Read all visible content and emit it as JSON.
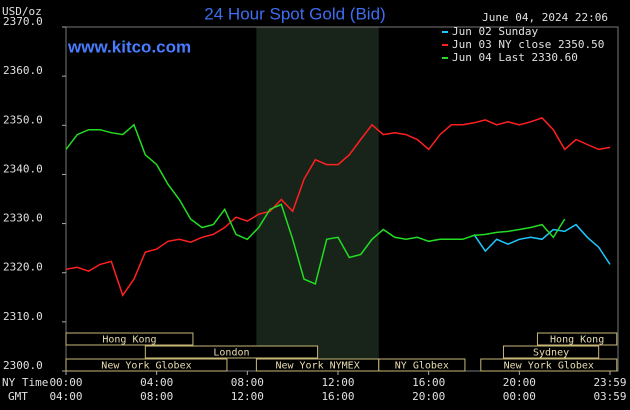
{
  "chart_data": {
    "type": "line",
    "title": "24 Hour Spot Gold (Bid)",
    "y_unit_label": "USD/oz",
    "watermark": "www.kitco.com",
    "timestamp": "June 04, 2024 22:06",
    "x_axis_label": "NY Time",
    "x2_axis_label": "GMT",
    "xlim": [
      0,
      24
    ],
    "xticks": [
      {
        "value": 0,
        "label": "00:00"
      },
      {
        "value": 4,
        "label": "04:00"
      },
      {
        "value": 8,
        "label": "08:00"
      },
      {
        "value": 12,
        "label": "12:00"
      },
      {
        "value": 16,
        "label": "16:00"
      },
      {
        "value": 20,
        "label": "20:00"
      },
      {
        "value": 24,
        "label": "23:59"
      }
    ],
    "gmt_tick_labels": [
      "04:00",
      "08:00",
      "12:00",
      "16:00",
      "20:00",
      "00:00",
      "03:59"
    ],
    "ylim": [
      2300,
      2370
    ],
    "yticks": [
      {
        "value": 2300,
        "label": "2300.0"
      },
      {
        "value": 2310,
        "label": "2310.0"
      },
      {
        "value": 2320,
        "label": "2320.0"
      },
      {
        "value": 2330,
        "label": "2330.0"
      },
      {
        "value": 2340,
        "label": "2340.0"
      },
      {
        "value": 2350,
        "label": "2350.0"
      },
      {
        "value": 2360,
        "label": "2360.0"
      },
      {
        "value": 2370,
        "label": "2370.0"
      }
    ],
    "grid": false,
    "legend_position": "top-right",
    "shaded_x": [
      8.4,
      13.8
    ],
    "x": [
      0,
      0.5,
      1,
      1.5,
      2,
      2.5,
      3,
      3.5,
      4,
      4.5,
      5,
      5.5,
      6,
      6.5,
      7,
      7.5,
      8,
      8.5,
      9,
      9.5,
      10,
      10.5,
      11,
      11.5,
      12,
      12.5,
      13,
      13.5,
      14,
      14.5,
      15,
      15.5,
      16,
      16.5,
      17,
      17.5,
      18,
      18.5,
      19,
      19.5,
      20,
      20.5,
      21,
      21.5,
      22,
      22.5,
      23,
      23.5,
      24
    ],
    "series": [
      {
        "name": "Jun 02 Sunday",
        "color": "#1ec8ff",
        "values": [
          null,
          null,
          null,
          null,
          null,
          null,
          null,
          null,
          null,
          null,
          null,
          null,
          null,
          null,
          null,
          null,
          null,
          null,
          null,
          null,
          null,
          null,
          null,
          null,
          null,
          null,
          null,
          null,
          null,
          null,
          null,
          null,
          null,
          null,
          null,
          null,
          2327.8,
          2324.4,
          2326.8,
          2325.8,
          2326.8,
          2327.2,
          2326.8,
          2328.8,
          2328.4,
          2329.8,
          2327.2,
          2325.2,
          2321.7
        ]
      },
      {
        "name": "Jun 03 NY close 2350.50",
        "color": "#ff2020",
        "values": [
          2320.7,
          2321.1,
          2320.3,
          2321.7,
          2322.3,
          2315.4,
          2318.7,
          2324.2,
          2324.8,
          2326.4,
          2326.8,
          2326.2,
          2327.2,
          2327.8,
          2329.2,
          2331.3,
          2330.5,
          2331.9,
          2332.5,
          2334.9,
          2332.5,
          2339.0,
          2343.0,
          2342.0,
          2342.0,
          2344.0,
          2347.1,
          2350.1,
          2348.1,
          2348.5,
          2348.1,
          2347.1,
          2345.1,
          2348.1,
          2350.1,
          2350.1,
          2350.5,
          2351.1,
          2350.1,
          2350.7,
          2350.1,
          2350.7,
          2351.5,
          2349.1,
          2345.1,
          2347.1,
          2346.1,
          2345.1,
          2345.5
        ]
      },
      {
        "name": "Jun 04 Last 2330.60",
        "color": "#22dd22",
        "values": [
          2345.1,
          2348.1,
          2349.1,
          2349.1,
          2348.5,
          2348.1,
          2350.1,
          2344.0,
          2342.0,
          2338.0,
          2334.9,
          2330.9,
          2329.2,
          2329.8,
          2332.9,
          2327.8,
          2326.8,
          2329.2,
          2332.9,
          2333.9,
          2326.8,
          2318.7,
          2317.7,
          2326.8,
          2327.2,
          2323.1,
          2323.7,
          2326.8,
          2328.8,
          2327.2,
          2326.8,
          2327.2,
          2326.4,
          2326.8,
          2326.8,
          2326.8,
          2327.6,
          2327.8,
          2328.2,
          2328.4,
          2328.8,
          2329.2,
          2329.8,
          2327.2,
          2330.9,
          null,
          null,
          null,
          null
        ]
      }
    ],
    "sessions": [
      {
        "label": "Hong Kong",
        "row": 0,
        "start": 0,
        "end": 5.6
      },
      {
        "label": "Hong Kong",
        "row": 0,
        "start": 20.8,
        "end": 24.3
      },
      {
        "label": "London",
        "row": 1,
        "start": 3.5,
        "end": 11.1
      },
      {
        "label": "Sydney",
        "row": 1,
        "start": 19.3,
        "end": 23.5
      },
      {
        "label": "New York Globex",
        "row": 2,
        "start": 0,
        "end": 7.1
      },
      {
        "label": "New York NYMEX",
        "row": 2,
        "start": 8.4,
        "end": 13.8
      },
      {
        "label": "NY Globex",
        "row": 2,
        "start": 13.8,
        "end": 17.6
      },
      {
        "label": "New York Globex",
        "row": 2,
        "start": 18.3,
        "end": 24.3
      }
    ]
  }
}
